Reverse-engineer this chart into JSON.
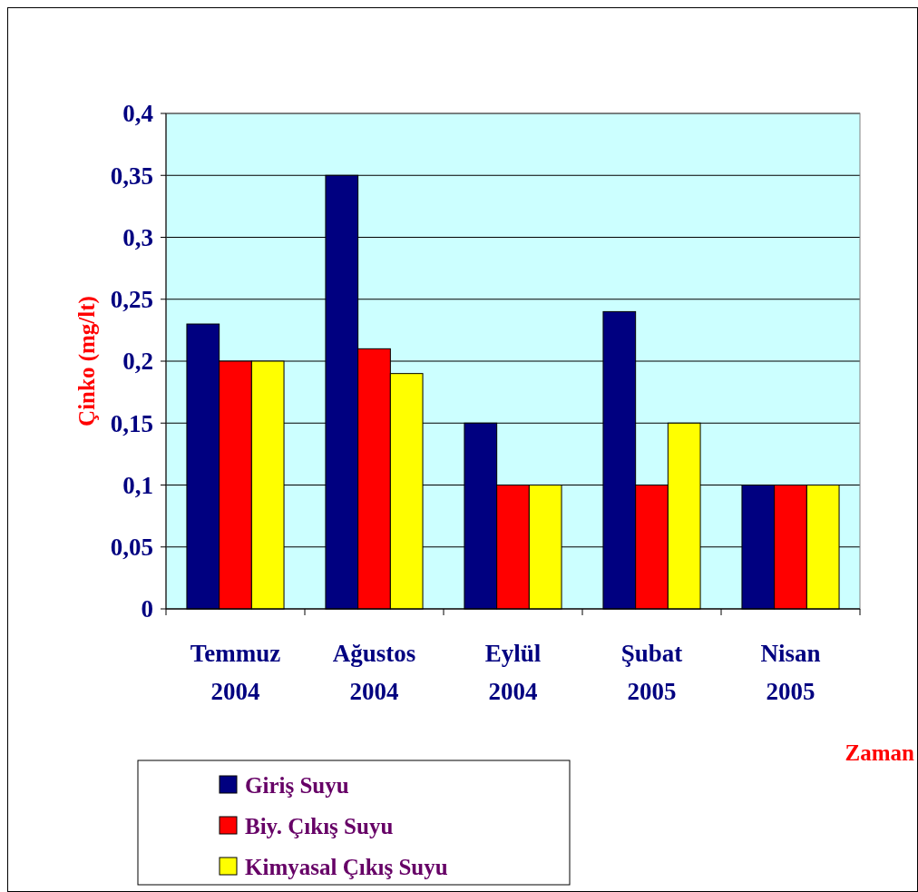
{
  "chart_data": {
    "type": "bar",
    "ylabel": "Çinko (mg/lt)",
    "xlabel": "Zaman",
    "categories": [
      "Temmuz\n2004",
      "Ağustos\n2004",
      "Eylül\n2004",
      "Şubat\n2005",
      "Nisan\n2005"
    ],
    "series": [
      {
        "name": "Giriş Suyu",
        "color": "#000080",
        "values": [
          0.23,
          0.35,
          0.15,
          0.24,
          0.1
        ]
      },
      {
        "name": "Biy. Çıkış Suyu",
        "color": "#ff0000",
        "values": [
          0.2,
          0.21,
          0.1,
          0.1,
          0.1
        ]
      },
      {
        "name": "Kimyasal Çıkış Suyu",
        "color": "#ffff00",
        "values": [
          0.2,
          0.19,
          0.1,
          0.15,
          0.1
        ]
      }
    ],
    "ylim": [
      0,
      0.4
    ],
    "yticks": [
      0,
      {
        "value": 0.05,
        "label": "0,05"
      },
      {
        "value": 0.1,
        "label": "0,1"
      },
      {
        "value": 0.15,
        "label": "0,15"
      },
      {
        "value": 0.2,
        "label": "0,2"
      },
      {
        "value": 0.25,
        "label": "0,25"
      },
      {
        "value": 0.3,
        "label": "0,3"
      },
      {
        "value": 0.35,
        "label": "0,35"
      },
      {
        "value": 0.4,
        "label": "0,4"
      }
    ],
    "grid": "y",
    "legend": "bottom"
  }
}
